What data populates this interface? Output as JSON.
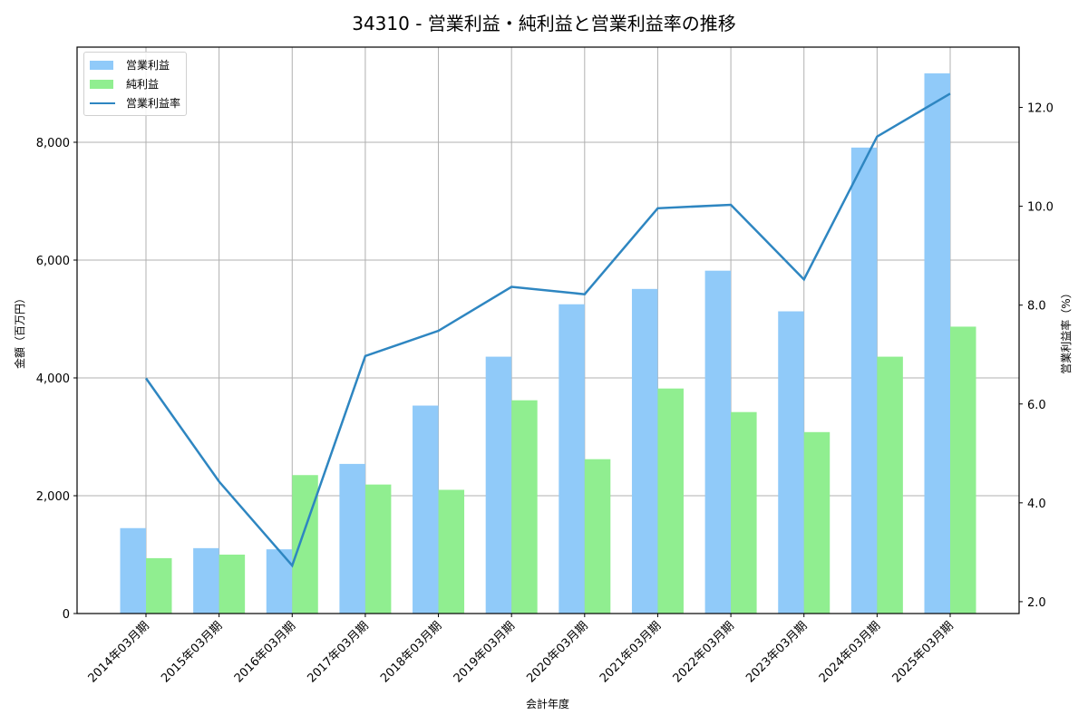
{
  "title": "34310 - 営業利益・純利益と営業利益率の推移",
  "legend": {
    "items": [
      {
        "label": "営業利益",
        "type": "bar",
        "color": "#90CAF9"
      },
      {
        "label": "純利益",
        "type": "bar",
        "color": "#90EE90"
      },
      {
        "label": "営業利益率",
        "type": "line",
        "color": "#2E86C1"
      }
    ]
  },
  "axes": {
    "xlabel": "会計年度",
    "ylabel_left": "金額（百万円）",
    "ylabel_right": "営業利益率（%）",
    "left_ticks": [
      "0",
      "2,000",
      "4,000",
      "6,000",
      "8,000"
    ],
    "right_ticks": [
      "2.0",
      "4.0",
      "6.0",
      "8.0",
      "10.0",
      "12.0"
    ]
  },
  "chart_data": {
    "type": "bar",
    "title": "34310 - 営業利益・純利益と営業利益率の推移",
    "xlabel": "会計年度",
    "ylabel": "金額（百万円）",
    "ylabel_right": "営業利益率（%）",
    "categories": [
      "2014年03月期",
      "2015年03月期",
      "2016年03月期",
      "2017年03月期",
      "2018年03月期",
      "2019年03月期",
      "2020年03月期",
      "2021年03月期",
      "2022年03月期",
      "2023年03月期",
      "2024年03月期",
      "2025年03月期"
    ],
    "series": [
      {
        "name": "営業利益",
        "type": "bar",
        "axis": "left",
        "color": "#90CAF9",
        "values": [
          1450,
          1110,
          1090,
          2540,
          3530,
          4360,
          5250,
          5510,
          5820,
          5130,
          7910,
          9170
        ]
      },
      {
        "name": "純利益",
        "type": "bar",
        "axis": "left",
        "color": "#90EE90",
        "values": [
          940,
          1000,
          2350,
          2190,
          2100,
          3620,
          2620,
          3820,
          3420,
          3080,
          4360,
          4870
        ]
      },
      {
        "name": "営業利益率",
        "type": "line",
        "axis": "right",
        "color": "#2E86C1",
        "values": [
          6.52,
          4.43,
          2.73,
          6.97,
          7.48,
          8.37,
          8.22,
          9.96,
          10.03,
          8.52,
          11.41,
          12.28
        ]
      }
    ],
    "ylim": [
      0,
      9615
    ],
    "ylim_right": [
      1.76,
      13.22
    ],
    "yticks": [
      0,
      2000,
      4000,
      6000,
      8000
    ],
    "yticks_right": [
      2.0,
      4.0,
      6.0,
      8.0,
      10.0,
      12.0
    ],
    "grid": true,
    "legend_position": "upper left"
  }
}
